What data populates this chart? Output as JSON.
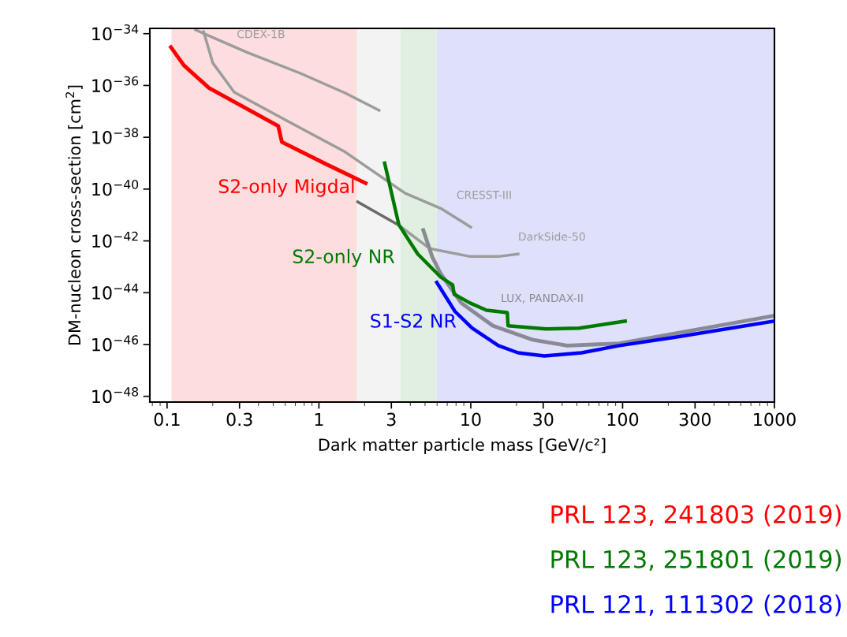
{
  "chart_data": {
    "type": "line",
    "xlabel": "Dark matter particle mass [GeV/c²]",
    "ylabel": "DM-nucleon cross-section [cm$^{2}$]",
    "log": "xy",
    "grid": false,
    "legend": false,
    "xlim": [
      0.077,
      1000
    ],
    "ylim": [
      6e-49,
      1.6e-34
    ],
    "xticks": [
      0.1,
      0.3,
      1,
      3,
      10,
      30,
      100,
      300,
      1000
    ],
    "yticks": [
      {
        "value": 1e-48,
        "label": "10$^{−48}$"
      },
      {
        "value": 1e-46,
        "label": "10$^{−46}$"
      },
      {
        "value": 1e-44,
        "label": "10$^{−44}$"
      },
      {
        "value": 1e-42,
        "label": "10$^{−42}$"
      },
      {
        "value": 1e-40,
        "label": "10$^{−40}$"
      },
      {
        "value": 1e-38,
        "label": "10$^{−38}$"
      },
      {
        "value": 1e-36,
        "label": "10$^{−36}$"
      },
      {
        "value": 1e-34,
        "label": "10$^{−34}$"
      }
    ],
    "bands": [
      {
        "axis": "x",
        "from": 0.107,
        "to": 1.78,
        "color": "#fddddd"
      },
      {
        "axis": "x",
        "from": 1.78,
        "to": 3.44,
        "color": "#f3f3f3"
      },
      {
        "axis": "x",
        "from": 3.44,
        "to": 5.97,
        "color": "#e1efe1"
      },
      {
        "axis": "x",
        "from": 5.97,
        "to": 1000,
        "color": "#dfe0fa"
      }
    ],
    "series": [
      {
        "name": "S2-only Migdal",
        "color": "#ff0000",
        "x": [
          0.106,
          0.129,
          0.189,
          0.54,
          0.57,
          1.11,
          2.03
        ],
        "values": [
          3e-35,
          6e-36,
          8e-37,
          2.7e-38,
          6.6e-39,
          9.3e-40,
          1.7e-40
        ]
      },
      {
        "name": "S2-only NR",
        "color": "#007a00",
        "x": [
          2.71,
          3.36,
          4.48,
          6.34,
          7.6,
          7.78,
          9.9,
          12.7,
          17.4,
          17.6,
          31.3,
          51.7,
          104
        ],
        "values": [
          1e-39,
          4.2e-42,
          3.1e-43,
          4e-44,
          2e-44,
          8.7e-45,
          4e-45,
          2.1e-45,
          1.7e-45,
          5.3e-46,
          4e-46,
          4.3e-46,
          8e-46
        ]
      },
      {
        "name": "S1-S2 NR",
        "color": "#0000ff",
        "x": [
          5.97,
          7.87,
          10.2,
          15.2,
          20.5,
          30.5,
          53.6,
          95.3,
          226,
          1000
        ],
        "values": [
          2.5e-44,
          1.9e-45,
          4.3e-46,
          9.1e-47,
          4.8e-47,
          3.6e-47,
          4.8e-47,
          9.1e-47,
          1.95e-46,
          8e-46
        ]
      },
      {
        "name": "CDEX-1B",
        "color": "#9c9c9c",
        "x": [
          0.154,
          0.336,
          0.75,
          1.49,
          2.49
        ],
        "values": [
          1.4e-34,
          1.9e-35,
          3e-36,
          5.1e-37,
          1.1e-37
        ]
      },
      {
        "name": "CRESST-III",
        "color": "#9c9c9c",
        "x": [
          0.174,
          0.2,
          0.277,
          0.61,
          1.49,
          3.7,
          6.34,
          10
        ],
        "values": [
          1.2e-34,
          7.4e-36,
          5.5e-37,
          4.5e-38,
          2.7e-39,
          6.9e-41,
          1.8e-41,
          3.4e-42
        ]
      },
      {
        "color": "#6a6a6a",
        "x": [
          1.8,
          3.32
        ],
        "values": [
          3.2e-41,
          4.2e-42
        ]
      },
      {
        "name": "DarkSide-50",
        "color": "#9c9c9c",
        "x": [
          3.32,
          5.36,
          9.9,
          15.2,
          20.5
        ],
        "values": [
          4.2e-42,
          5.1e-43,
          2.5e-43,
          2.5e-43,
          3.1e-43
        ]
      },
      {
        "name": "LUX, PANDAX-II",
        "color": "#8a8a96",
        "x": [
          4.87,
          5.56,
          6.34,
          8.66,
          14,
          25.8,
          43.2,
          95.3,
          1000
        ],
        "values": [
          2.6e-42,
          2.5e-43,
          5.4e-44,
          4e-45,
          5.3e-46,
          1.5e-46,
          9.1e-47,
          1.1e-46,
          1.3e-45
        ]
      }
    ],
    "annotations": [
      "PRL 123, 241803 (2019)",
      "PRL 123, 251801 (2019)",
      "PRL 121, 111302 (2018)"
    ]
  }
}
